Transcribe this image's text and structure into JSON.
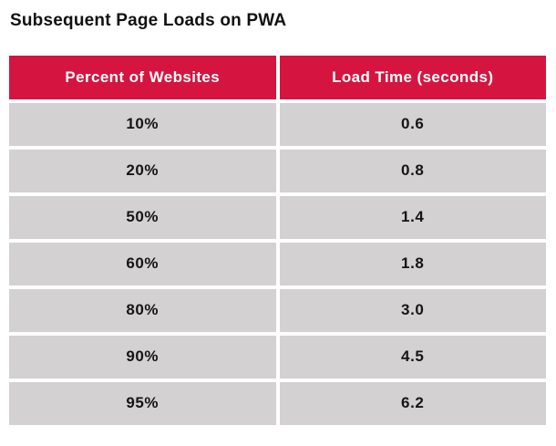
{
  "page": {
    "title": "Subsequent Page Loads on PWA"
  },
  "colors": {
    "header_bg": "#d5153f",
    "row_bg": "#d3d1d1",
    "header_text": "#ffffff",
    "body_text": "#151515"
  },
  "table": {
    "headers": {
      "percent": "Percent of Websites",
      "load_time": "Load Time (seconds)"
    },
    "rows": [
      {
        "percent": "10%",
        "load_time": "0.6"
      },
      {
        "percent": "20%",
        "load_time": "0.8"
      },
      {
        "percent": "50%",
        "load_time": "1.4"
      },
      {
        "percent": "60%",
        "load_time": "1.8"
      },
      {
        "percent": "80%",
        "load_time": "3.0"
      },
      {
        "percent": "90%",
        "load_time": "4.5"
      },
      {
        "percent": "95%",
        "load_time": "6.2"
      }
    ]
  },
  "chart_data": {
    "type": "table",
    "title": "Subsequent Page Loads on PWA",
    "columns": [
      "Percent of Websites",
      "Load Time (seconds)"
    ],
    "rows": [
      [
        "10%",
        0.6
      ],
      [
        "20%",
        0.8
      ],
      [
        "50%",
        1.4
      ],
      [
        "60%",
        1.8
      ],
      [
        "80%",
        3.0
      ],
      [
        "90%",
        4.5
      ],
      [
        "95%",
        6.2
      ]
    ]
  }
}
